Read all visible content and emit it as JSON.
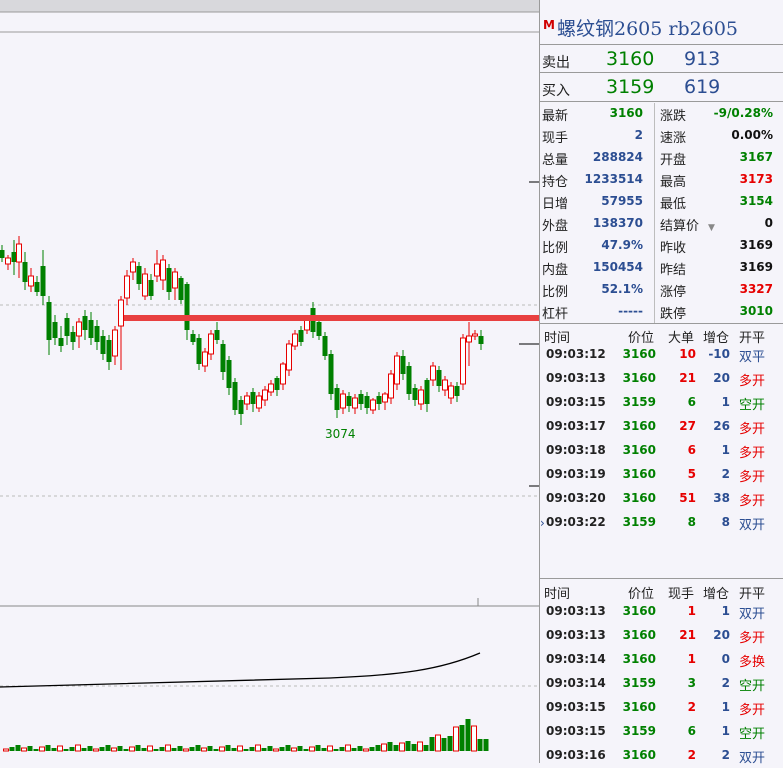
{
  "instrument": {
    "marker": "M",
    "title": "螺纹钢2605 rb2605"
  },
  "orderbook": [
    {
      "label": "卖出",
      "price": "3160",
      "volume": "913"
    },
    {
      "label": "买入",
      "price": "3159",
      "volume": "619"
    }
  ],
  "quote_rows": [
    {
      "l1": "最新",
      "v1": "3160",
      "c1": "grn",
      "l2": "涨跌",
      "v2": "-9/0.28%",
      "c2": "grn"
    },
    {
      "l1": "现手",
      "v1": "2",
      "c1": "blu",
      "l2": "速涨",
      "v2": "0.00%",
      "c2": "blk"
    },
    {
      "l1": "总量",
      "v1": "288824",
      "c1": "blu",
      "l2": "开盘",
      "v2": "3167",
      "c2": "grn"
    },
    {
      "l1": "持仓",
      "v1": "1233514",
      "c1": "blu",
      "l2": "最高",
      "v2": "3173",
      "c2": "red"
    },
    {
      "l1": "日增",
      "v1": "57955",
      "c1": "blu",
      "l2": "最低",
      "v2": "3154",
      "c2": "grn"
    },
    {
      "l1": "外盘",
      "v1": "138370",
      "c1": "blu",
      "l2": "结算价",
      "v2": "0",
      "c2": "blk"
    },
    {
      "l1": "比例",
      "v1": "47.9%",
      "c1": "blu",
      "l2": "昨收",
      "v2": "3169",
      "c2": "blk"
    },
    {
      "l1": "内盘",
      "v1": "150454",
      "c1": "blu",
      "l2": "昨结",
      "v2": "3169",
      "c2": "blk"
    },
    {
      "l1": "比例",
      "v1": "52.1%",
      "c1": "blu",
      "l2": "涨停",
      "v2": "3327",
      "c2": "red"
    },
    {
      "l1": "杠杆",
      "v1": "-----",
      "c1": "blu",
      "l2": "跌停",
      "v2": "3010",
      "c2": "grn"
    }
  ],
  "trades_headers": [
    "时间",
    "价位",
    "大单",
    "增仓",
    "开平"
  ],
  "trades": [
    {
      "time": "09:03:12",
      "price": "3160",
      "pc": "grn",
      "vol": "10",
      "vc": "red",
      "oi": "-10",
      "type": "双平",
      "tc": "blu"
    },
    {
      "time": "09:03:13",
      "price": "3160",
      "pc": "grn",
      "vol": "21",
      "vc": "red",
      "oi": "20",
      "type": "多开",
      "tc": "red"
    },
    {
      "time": "09:03:15",
      "price": "3159",
      "pc": "grn",
      "vol": "6",
      "vc": "grn",
      "oi": "1",
      "type": "空开",
      "tc": "grn"
    },
    {
      "time": "09:03:17",
      "price": "3160",
      "pc": "grn",
      "vol": "27",
      "vc": "red",
      "oi": "26",
      "type": "多开",
      "tc": "red"
    },
    {
      "time": "09:03:18",
      "price": "3160",
      "pc": "grn",
      "vol": "6",
      "vc": "red",
      "oi": "1",
      "type": "多开",
      "tc": "red"
    },
    {
      "time": "09:03:19",
      "price": "3160",
      "pc": "grn",
      "vol": "5",
      "vc": "red",
      "oi": "2",
      "type": "多开",
      "tc": "red"
    },
    {
      "time": "09:03:20",
      "price": "3160",
      "pc": "grn",
      "vol": "51",
      "vc": "red",
      "oi": "38",
      "type": "多开",
      "tc": "red"
    },
    {
      "time": "09:03:22",
      "price": "3159",
      "pc": "grn",
      "vol": "8",
      "vc": "grn",
      "oi": "8",
      "type": "双开",
      "tc": "blu"
    }
  ],
  "ticks_headers": [
    "时间",
    "价位",
    "现手",
    "增仓",
    "开平"
  ],
  "ticks": [
    {
      "time": "09:03:13",
      "price": "3160",
      "pc": "grn",
      "vol": "1",
      "vc": "red",
      "oi": "1",
      "type": "双开",
      "tc": "blu"
    },
    {
      "time": "09:03:13",
      "price": "3160",
      "pc": "grn",
      "vol": "21",
      "vc": "red",
      "oi": "20",
      "type": "多开",
      "tc": "red"
    },
    {
      "time": "09:03:14",
      "price": "3160",
      "pc": "grn",
      "vol": "1",
      "vc": "red",
      "oi": "0",
      "type": "多换",
      "tc": "red"
    },
    {
      "time": "09:03:14",
      "price": "3159",
      "pc": "grn",
      "vol": "3",
      "vc": "grn",
      "oi": "2",
      "type": "空开",
      "tc": "grn"
    },
    {
      "time": "09:03:15",
      "price": "3160",
      "pc": "grn",
      "vol": "2",
      "vc": "red",
      "oi": "1",
      "type": "多开",
      "tc": "red"
    },
    {
      "time": "09:03:15",
      "price": "3159",
      "pc": "grn",
      "vol": "6",
      "vc": "grn",
      "oi": "1",
      "type": "空开",
      "tc": "grn"
    },
    {
      "time": "09:03:16",
      "price": "3160",
      "pc": "grn",
      "vol": "2",
      "vc": "red",
      "oi": "2",
      "type": "双开",
      "tc": "blu"
    }
  ],
  "chart_data": {
    "type": "candlestick",
    "annotations": [
      "3074"
    ],
    "colors": {
      "up": "#e60000",
      "down": "#008000",
      "support_line": "#e84040",
      "oi_line": "#000000"
    }
  }
}
